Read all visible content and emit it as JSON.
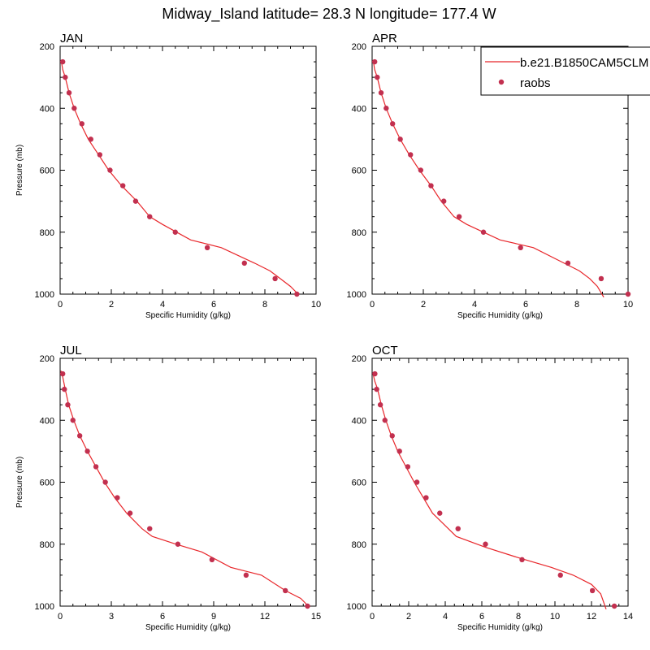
{
  "title": "Midway_Island  latitude= 28.3 N longitude= 177.4 W",
  "legend": {
    "placement": "top-right",
    "model_label": "b.e21.B1850CAM5CLM",
    "obs_label": "raobs"
  },
  "colors": {
    "model_line": "#e8262a",
    "obs_marker": "#c2304f",
    "axis": "#000000"
  },
  "chart_data": [
    {
      "type": "line",
      "title": "JAN",
      "xlabel": "Specific Humidity (g/kg)",
      "ylabel": "Pressure (mb)",
      "xlim": [
        0,
        10
      ],
      "xticks": [
        0,
        2,
        4,
        6,
        8,
        10
      ],
      "ylim": [
        1000,
        200
      ],
      "yticks": [
        200,
        400,
        600,
        800,
        1000
      ],
      "series": [
        {
          "kind": "model",
          "x": [
            0.05,
            0.1,
            0.2,
            0.35,
            0.55,
            0.8,
            1.1,
            1.5,
            1.9,
            2.4,
            3.0,
            3.5,
            4.0,
            5.1,
            6.3,
            7.6,
            8.2,
            8.6,
            9.0,
            9.3
          ],
          "y": [
            250,
            275,
            300,
            350,
            400,
            450,
            500,
            550,
            600,
            650,
            700,
            750,
            775,
            825,
            850,
            900,
            925,
            950,
            975,
            1000
          ]
        },
        {
          "kind": "obs",
          "x": [
            0.1,
            0.2,
            0.35,
            0.55,
            0.85,
            1.2,
            1.55,
            1.95,
            2.45,
            2.95,
            3.5,
            4.5,
            5.75,
            7.2,
            8.4,
            9.25
          ],
          "y": [
            250,
            300,
            350,
            400,
            450,
            500,
            550,
            600,
            650,
            700,
            750,
            800,
            850,
            900,
            950,
            1000
          ]
        }
      ]
    },
    {
      "type": "line",
      "title": "APR",
      "xlabel": "Specific Humidity (g/kg)",
      "ylabel": "",
      "xlim": [
        0,
        10
      ],
      "xticks": [
        0,
        2,
        4,
        6,
        8,
        10
      ],
      "ylim": [
        1000,
        200
      ],
      "yticks": [
        200,
        400,
        600,
        800,
        1000
      ],
      "series": [
        {
          "kind": "model",
          "x": [
            0.05,
            0.1,
            0.2,
            0.35,
            0.55,
            0.8,
            1.1,
            1.45,
            1.85,
            2.3,
            2.7,
            3.2,
            3.7,
            5.0,
            6.3,
            7.5,
            8.1,
            8.5,
            8.8,
            9.05
          ],
          "y": [
            250,
            275,
            300,
            350,
            400,
            450,
            500,
            550,
            600,
            650,
            700,
            750,
            775,
            825,
            850,
            900,
            925,
            950,
            975,
            1010
          ]
        },
        {
          "kind": "obs",
          "x": [
            0.1,
            0.2,
            0.35,
            0.55,
            0.8,
            1.1,
            1.5,
            1.9,
            2.3,
            2.8,
            3.4,
            4.35,
            5.8,
            7.65,
            8.95,
            10.0
          ],
          "y": [
            250,
            300,
            350,
            400,
            450,
            500,
            550,
            600,
            650,
            700,
            750,
            800,
            850,
            900,
            950,
            1000
          ]
        }
      ]
    },
    {
      "type": "line",
      "title": "JUL",
      "xlabel": "Specific Humidity (g/kg)",
      "ylabel": "Pressure (mb)",
      "xlim": [
        0,
        15
      ],
      "xticks": [
        0,
        3,
        6,
        9,
        12,
        15
      ],
      "ylim": [
        1000,
        200
      ],
      "yticks": [
        200,
        400,
        600,
        800,
        1000
      ],
      "series": [
        {
          "kind": "model",
          "x": [
            0.05,
            0.15,
            0.3,
            0.5,
            0.8,
            1.15,
            1.6,
            2.1,
            2.6,
            3.2,
            3.9,
            4.8,
            5.4,
            6.8,
            8.3,
            10.0,
            11.8,
            13.2,
            14.1,
            14.55
          ],
          "y": [
            240,
            260,
            300,
            350,
            400,
            450,
            500,
            550,
            600,
            650,
            700,
            750,
            775,
            800,
            825,
            875,
            900,
            950,
            975,
            1000
          ]
        },
        {
          "kind": "obs",
          "x": [
            0.15,
            0.25,
            0.45,
            0.75,
            1.15,
            1.6,
            2.1,
            2.65,
            3.35,
            4.1,
            5.25,
            6.9,
            8.9,
            10.9,
            13.2,
            14.5
          ],
          "y": [
            250,
            300,
            350,
            400,
            450,
            500,
            550,
            600,
            650,
            700,
            750,
            800,
            850,
            900,
            950,
            1000
          ]
        }
      ]
    },
    {
      "type": "line",
      "title": "OCT",
      "xlabel": "Specific Humidity (g/kg)",
      "ylabel": "",
      "xlim": [
        0,
        14
      ],
      "xticks": [
        0,
        2,
        4,
        6,
        8,
        10,
        12,
        14
      ],
      "ylim": [
        1000,
        200
      ],
      "yticks": [
        200,
        400,
        600,
        800,
        1000
      ],
      "series": [
        {
          "kind": "model",
          "x": [
            0.05,
            0.15,
            0.3,
            0.5,
            0.75,
            1.05,
            1.4,
            1.85,
            2.3,
            2.8,
            3.3,
            4.0,
            4.6,
            6.2,
            7.8,
            9.8,
            11.0,
            12.0,
            12.5,
            12.8
          ],
          "y": [
            250,
            275,
            300,
            350,
            400,
            450,
            500,
            550,
            600,
            650,
            700,
            740,
            775,
            810,
            840,
            875,
            900,
            930,
            960,
            1010
          ]
        },
        {
          "kind": "obs",
          "x": [
            0.15,
            0.25,
            0.45,
            0.7,
            1.1,
            1.5,
            1.95,
            2.45,
            2.95,
            3.7,
            4.7,
            6.2,
            8.2,
            10.3,
            12.05,
            13.25
          ],
          "y": [
            250,
            300,
            350,
            400,
            450,
            500,
            550,
            600,
            650,
            700,
            750,
            800,
            850,
            900,
            950,
            1000
          ]
        }
      ]
    }
  ]
}
